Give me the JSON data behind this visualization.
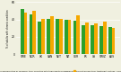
{
  "categories": [
    "SWE",
    "NOR",
    "UK",
    "CAN",
    "NET",
    "NZ",
    "GER",
    "FR",
    "US",
    "SWIZ",
    "AUS"
  ],
  "green_values": [
    52,
    46,
    38,
    41,
    41,
    40,
    39,
    33,
    33,
    32,
    31
  ],
  "orange_values": [
    48,
    50,
    41,
    44,
    41,
    40,
    45,
    36,
    35,
    38,
    30
  ],
  "green_color": "#2ca02c",
  "orange_color": "#f5a800",
  "background_color": "#f0f0e0",
  "ylim": [
    0,
    60
  ],
  "yticks": [
    0,
    20,
    40,
    60
  ],
  "ylabel": "% of adults with chronic condition",
  "legend1": "did not discuss their care goals and priorities or caring for their condition with their health professional",
  "legend2": "did not discuss their treatment options, including side effects, with their health professional"
}
